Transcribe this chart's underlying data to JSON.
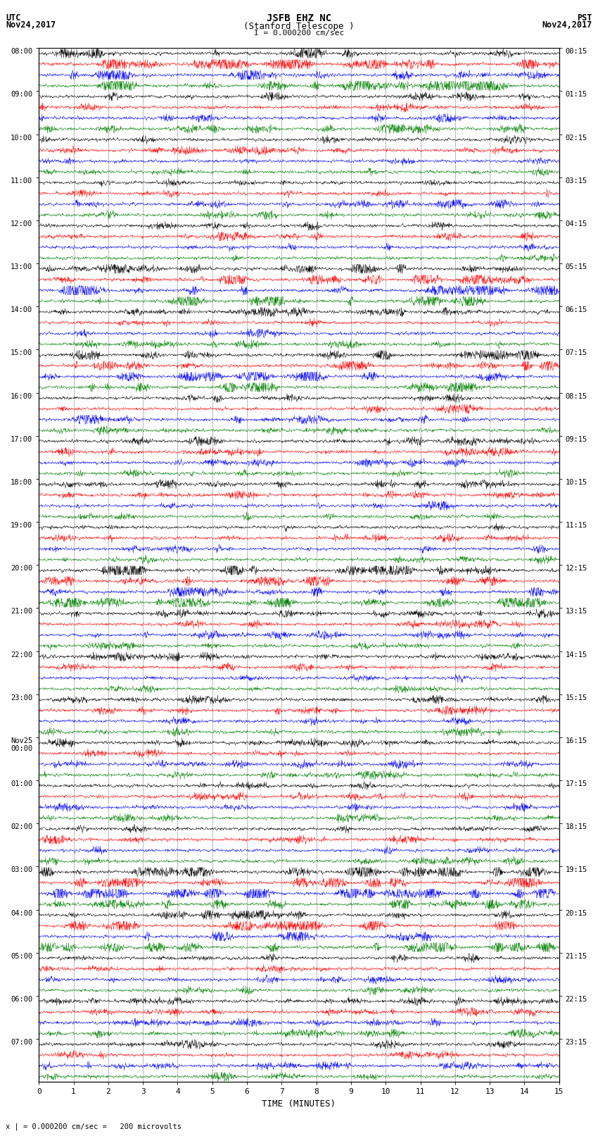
{
  "title_line1": "JSFB EHZ NC",
  "title_line2": "(Stanford Telescope )",
  "scale_label": "I = 0.000200 cm/sec",
  "left_header_line1": "UTC",
  "left_header_line2": "Nov24,2017",
  "right_header_line1": "PST",
  "right_header_line2": "Nov24,2017",
  "xlabel": "TIME (MINUTES)",
  "footer": "x | = 0.000200 cm/sec =   200 microvolts",
  "utc_hour_labels": [
    "08:00",
    "09:00",
    "10:00",
    "11:00",
    "12:00",
    "13:00",
    "14:00",
    "15:00",
    "16:00",
    "17:00",
    "18:00",
    "19:00",
    "20:00",
    "21:00",
    "22:00",
    "23:00",
    "Nov25\n00:00",
    "01:00",
    "02:00",
    "03:00",
    "04:00",
    "05:00",
    "06:00",
    "07:00"
  ],
  "pst_hour_labels": [
    "00:15",
    "01:15",
    "02:15",
    "03:15",
    "04:15",
    "05:15",
    "06:15",
    "07:15",
    "08:15",
    "09:15",
    "10:15",
    "11:15",
    "12:15",
    "13:15",
    "14:15",
    "15:15",
    "16:15",
    "17:15",
    "18:15",
    "19:15",
    "20:15",
    "21:15",
    "22:15",
    "23:15"
  ],
  "colors": [
    "black",
    "red",
    "blue",
    "green"
  ],
  "n_groups": 24,
  "traces_per_group": 4,
  "x_ticks": [
    0,
    1,
    2,
    3,
    4,
    5,
    6,
    7,
    8,
    9,
    10,
    11,
    12,
    13,
    14,
    15
  ],
  "xlim": [
    0,
    15
  ],
  "bg_color": "white",
  "seed": 42,
  "trace_linewidth": 0.35
}
